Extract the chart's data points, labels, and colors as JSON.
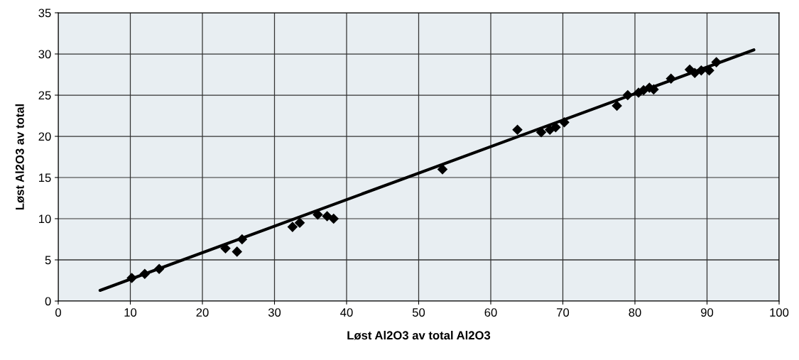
{
  "chart_data": {
    "type": "scatter",
    "xlabel": "Løst Al2O3 av total Al2O3",
    "ylabel": "Løst Al2O3 av total",
    "xlim": [
      0,
      100
    ],
    "xticks": [
      0,
      10,
      20,
      30,
      40,
      50,
      60,
      70,
      80,
      90,
      100
    ],
    "ylim": [
      0,
      35
    ],
    "yticks": [
      0,
      5,
      10,
      15,
      20,
      25,
      30,
      35
    ],
    "grid": true,
    "series": [
      {
        "marker": "diamond",
        "color": "#000000",
        "x": [
          10.2,
          12,
          14,
          23.2,
          24.8,
          25.5,
          32.5,
          33.5,
          36,
          37.3,
          38.2,
          53.3,
          63.7,
          67,
          68.2,
          69,
          70.2,
          77.5,
          79,
          80.5,
          81.2,
          82,
          82.6,
          85,
          87.6,
          88.3,
          89.2,
          90.3,
          91.3
        ],
        "values": [
          2.8,
          3.3,
          3.9,
          6.4,
          6.0,
          7.5,
          9.0,
          9.5,
          10.5,
          10.3,
          10.0,
          16.0,
          20.8,
          20.5,
          20.8,
          21.1,
          21.7,
          23.7,
          25.0,
          25.3,
          25.6,
          25.9,
          25.7,
          27.0,
          28.1,
          27.7,
          28.0,
          28.0,
          29.0
        ]
      },
      {
        "type": "line",
        "marker": "none",
        "color": "#000000",
        "x": [
          5.8,
          96.5
        ],
        "values": [
          1.3,
          30.5
        ]
      }
    ]
  }
}
